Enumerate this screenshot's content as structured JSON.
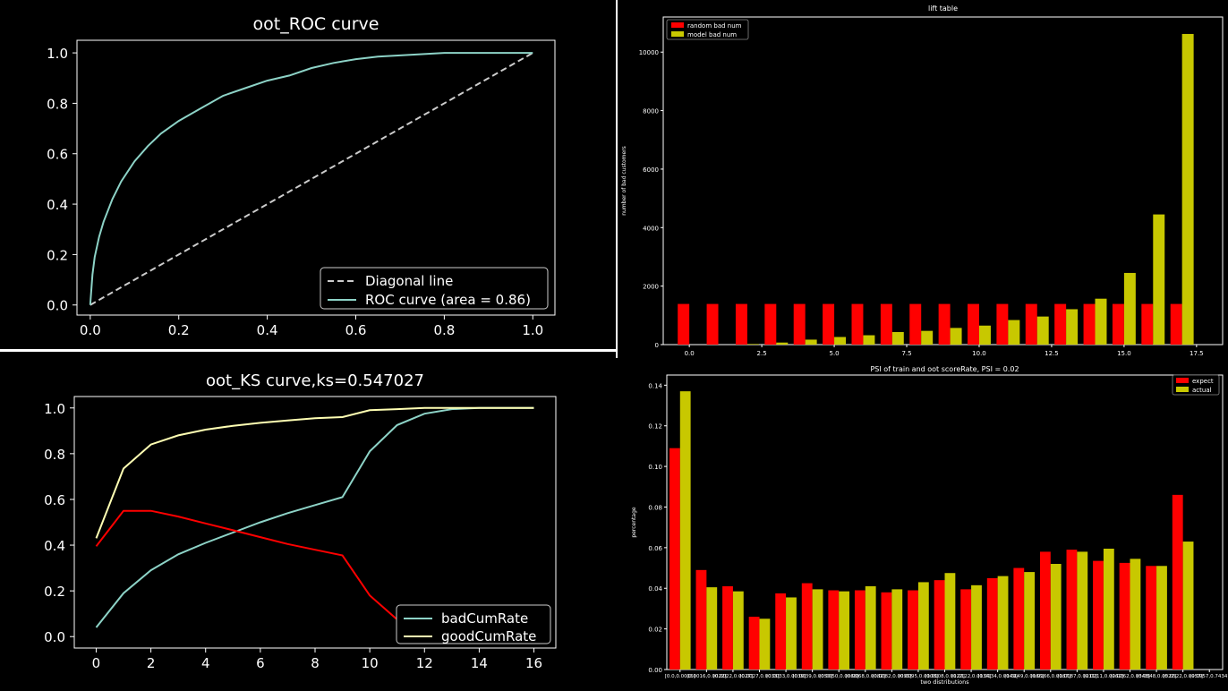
{
  "chart_data": [
    {
      "id": "roc",
      "type": "line",
      "title": "oot_ROC curve",
      "xlabel": "",
      "ylabel": "",
      "xlim": [
        -0.03,
        1.05
      ],
      "ylim": [
        -0.04,
        1.05
      ],
      "xticks": [
        "0.0",
        "0.2",
        "0.4",
        "0.6",
        "0.8",
        "1.0"
      ],
      "yticks": [
        "0.0",
        "0.2",
        "0.4",
        "0.6",
        "0.8",
        "1.0"
      ],
      "legend_position": "lower-right",
      "series": [
        {
          "name": "Diagonal line",
          "color": "#cccccc",
          "style": "dashed",
          "x": [
            0,
            1
          ],
          "y": [
            0,
            1
          ]
        },
        {
          "name": "ROC curve (area = 0.86)",
          "color": "#8dd3c7",
          "style": "solid",
          "x": [
            0,
            0.005,
            0.01,
            0.02,
            0.03,
            0.05,
            0.07,
            0.1,
            0.13,
            0.16,
            0.2,
            0.25,
            0.3,
            0.35,
            0.4,
            0.45,
            0.5,
            0.55,
            0.6,
            0.65,
            0.7,
            0.75,
            0.8,
            0.85,
            0.9,
            0.95,
            1.0
          ],
          "y": [
            0,
            0.12,
            0.19,
            0.27,
            0.33,
            0.42,
            0.49,
            0.57,
            0.63,
            0.68,
            0.73,
            0.78,
            0.83,
            0.86,
            0.89,
            0.91,
            0.94,
            0.96,
            0.975,
            0.985,
            0.99,
            0.995,
            1.0,
            1.0,
            1.0,
            1.0,
            1.0
          ]
        }
      ]
    },
    {
      "id": "lift",
      "type": "bar",
      "title": "lift table",
      "xlabel": "",
      "ylabel": "number of bad customers",
      "xlim": [
        -0.9,
        18.4
      ],
      "ylim": [
        0,
        11200
      ],
      "xticks": [
        "0.0",
        "2.5",
        "5.0",
        "7.5",
        "10.0",
        "12.5",
        "15.0",
        "17.5"
      ],
      "yticks": [
        "0",
        "2000",
        "4000",
        "6000",
        "8000",
        "10000"
      ],
      "legend_position": "upper-left",
      "x": [
        0,
        1,
        2,
        3,
        4,
        5,
        6,
        7,
        8,
        9,
        10,
        11,
        12,
        13,
        14,
        15,
        16,
        17
      ],
      "series": [
        {
          "name": "random bad num",
          "color": "#ff0000",
          "values": [
            1390,
            1390,
            1390,
            1390,
            1390,
            1390,
            1390,
            1390,
            1390,
            1390,
            1390,
            1390,
            1390,
            1390,
            1390,
            1390,
            1390,
            1390
          ]
        },
        {
          "name": "model bad num",
          "color": "#c8c800",
          "values": [
            0,
            0,
            20,
            70,
            170,
            260,
            320,
            430,
            470,
            570,
            650,
            840,
            960,
            1210,
            1570,
            2450,
            4450,
            10620
          ]
        }
      ]
    },
    {
      "id": "ks",
      "type": "line",
      "title": "oot_KS curve,ks=0.547027",
      "xlabel": "",
      "ylabel": "",
      "xlim": [
        -0.8,
        16.8
      ],
      "ylim": [
        -0.05,
        1.05
      ],
      "xticks": [
        "0",
        "2",
        "4",
        "6",
        "8",
        "10",
        "12",
        "14",
        "16"
      ],
      "yticks": [
        "0.0",
        "0.2",
        "0.4",
        "0.6",
        "0.8",
        "1.0"
      ],
      "legend_position": "lower-right",
      "series": [
        {
          "name": "badCumRate",
          "color": "#8dd3c7",
          "x": [
            0,
            1,
            2,
            3,
            4,
            5,
            6,
            7,
            8,
            9,
            10,
            11,
            12,
            13,
            14,
            15,
            16
          ],
          "y": [
            0.04,
            0.19,
            0.29,
            0.36,
            0.41,
            0.455,
            0.5,
            0.54,
            0.575,
            0.61,
            0.81,
            0.925,
            0.975,
            0.995,
            1.0,
            1.0,
            1.0
          ]
        },
        {
          "name": "goodCumRate",
          "color": "#ffffb3",
          "x": [
            0,
            1,
            2,
            3,
            4,
            5,
            6,
            7,
            8,
            9,
            10,
            11,
            12,
            13,
            14,
            15,
            16
          ],
          "y": [
            0.43,
            0.735,
            0.84,
            0.88,
            0.905,
            0.922,
            0.935,
            0.945,
            0.955,
            0.96,
            0.99,
            0.995,
            1.0,
            1.0,
            1.0,
            1.0,
            1.0
          ]
        },
        {
          "name": "",
          "color": "#ff0000",
          "x": [
            0,
            1,
            2,
            3,
            4,
            5,
            6,
            7,
            8,
            9,
            10,
            11,
            12
          ],
          "y": [
            0.395,
            0.55,
            0.55,
            0.525,
            0.495,
            0.465,
            0.435,
            0.405,
            0.38,
            0.355,
            0.18,
            0.075,
            0.025
          ]
        }
      ]
    },
    {
      "id": "psi",
      "type": "bar",
      "title": "PSI of train and oot scoreRate, PSI = 0.02",
      "xlabel": "two distributions",
      "ylabel": "percentage",
      "ylim": [
        0,
        0.145
      ],
      "yticks": [
        "0.00",
        "0.02",
        "0.04",
        "0.06",
        "0.08",
        "0.10",
        "0.12",
        "0.14"
      ],
      "legend_position": "upper-right",
      "categories": [
        "[0.0,0.0016]",
        "(0.0016,0.0022]",
        "(0.0022,0.0027]",
        "(0.0027,0.0033]",
        "(0.0033,0.0039]",
        "(0.0039,0.0050]",
        "(0.0050,0.0068]",
        "(0.0068,0.0082]",
        "(0.0082,0.0095]",
        "(0.0095,0.0108]",
        "(0.0108,0.0122]",
        "(0.0122,0.0134]",
        "(0.0134,0.0149]",
        "(0.0149,0.0166]",
        "(0.0166,0.0187]",
        "(0.0187,0.0211]",
        "(0.0211,0.0262]",
        "(0.0262,0.0348]",
        "(0.0348,0.0522]",
        "(0.0522,0.0957]",
        "(0.0957,0.7434]"
      ],
      "tick_labels": [
        "[0.0,0.0016]",
        "(0.0016,0.0022]",
        "(0.0022,0.0027]",
        "(0.0027,0.0033]",
        "(0.0033,0.0039]",
        "(0.0039,0.0050]",
        "(0.0050,0.0068]",
        "(0.0068,0.0082]",
        "(0.0082,0.0095]",
        "(0.0095,0.0108]",
        "(0.0108,0.0122]",
        "(0.0122,0.0134]",
        "(0.0134,0.0149]",
        "(0.0149,0.0166]",
        "(0.0166,0.0187]",
        "(0.0187,0.0211]",
        "(0.0211,0.0262]",
        "(0.0262,0.0348]",
        "(0.0348,0.0522]",
        "(0.0522,0.0957]",
        "(0.0957,0.7434]"
      ],
      "series": [
        {
          "name": "expect",
          "color": "#ff0000",
          "values": [
            0.109,
            0.049,
            0.041,
            0.026,
            0.0375,
            0.0425,
            0.039,
            0.039,
            0.038,
            0.039,
            0.044,
            0.0395,
            0.045,
            0.05,
            0.058,
            0.059,
            0.0535,
            0.0525,
            0.051,
            0.086,
            0
          ]
        },
        {
          "name": "actual",
          "color": "#c8c800",
          "values": [
            0.137,
            0.0405,
            0.0385,
            0.025,
            0.0355,
            0.0395,
            0.0385,
            0.041,
            0.0395,
            0.043,
            0.0475,
            0.0415,
            0.046,
            0.048,
            0.052,
            0.058,
            0.0595,
            0.0545,
            0.051,
            0.063,
            0
          ]
        }
      ]
    }
  ]
}
